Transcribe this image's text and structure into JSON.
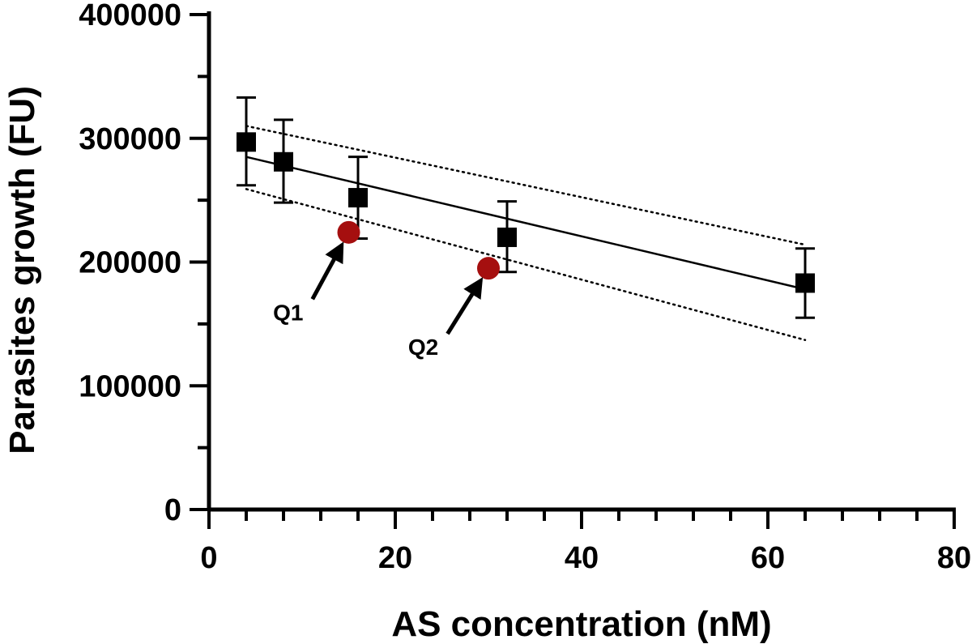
{
  "chart_data": {
    "type": "scatter",
    "title": "",
    "xlabel": "AS concentration (nM)",
    "ylabel": "Parasites growth (FU)",
    "xlim": [
      0,
      80
    ],
    "ylim": [
      0,
      400000
    ],
    "x_ticks": [
      0,
      20,
      40,
      60,
      80
    ],
    "x_tick_labels": [
      "0",
      "20",
      "40",
      "60",
      "80"
    ],
    "x_minor_step": 4,
    "y_ticks": [
      0,
      100000,
      200000,
      300000,
      400000
    ],
    "y_tick_labels": [
      "0",
      "100000",
      "200000",
      "300000",
      "400000"
    ],
    "y_minor_step": 50000,
    "grid": false,
    "series": [
      {
        "name": "AS",
        "marker": "square",
        "color": "#000000",
        "x": [
          4,
          8,
          16,
          32,
          64
        ],
        "y": [
          297000,
          281000,
          252000,
          220000,
          183000
        ],
        "error_low": [
          262000,
          248000,
          219000,
          192000,
          155000
        ],
        "error_high": [
          333000,
          315000,
          285000,
          249000,
          211000
        ]
      },
      {
        "name": "Q",
        "marker": "circle",
        "color": "#a50f0f",
        "x": [
          15,
          30
        ],
        "y": [
          224000,
          195000
        ]
      }
    ],
    "fit_line": {
      "x": [
        4,
        64
      ],
      "y": [
        285000,
        178000
      ]
    },
    "confidence_upper": {
      "x": [
        4,
        64
      ],
      "y": [
        310000,
        214000
      ]
    },
    "confidence_lower": {
      "x": [
        4,
        64
      ],
      "y": [
        259000,
        137000
      ]
    },
    "annotations": [
      {
        "label": "Q1",
        "target_x": 15,
        "target_y": 224000,
        "text_x": 8.5,
        "text_y": 153000
      },
      {
        "label": "Q2",
        "target_x": 30,
        "target_y": 195000,
        "text_x": 23,
        "text_y": 125000
      }
    ]
  }
}
